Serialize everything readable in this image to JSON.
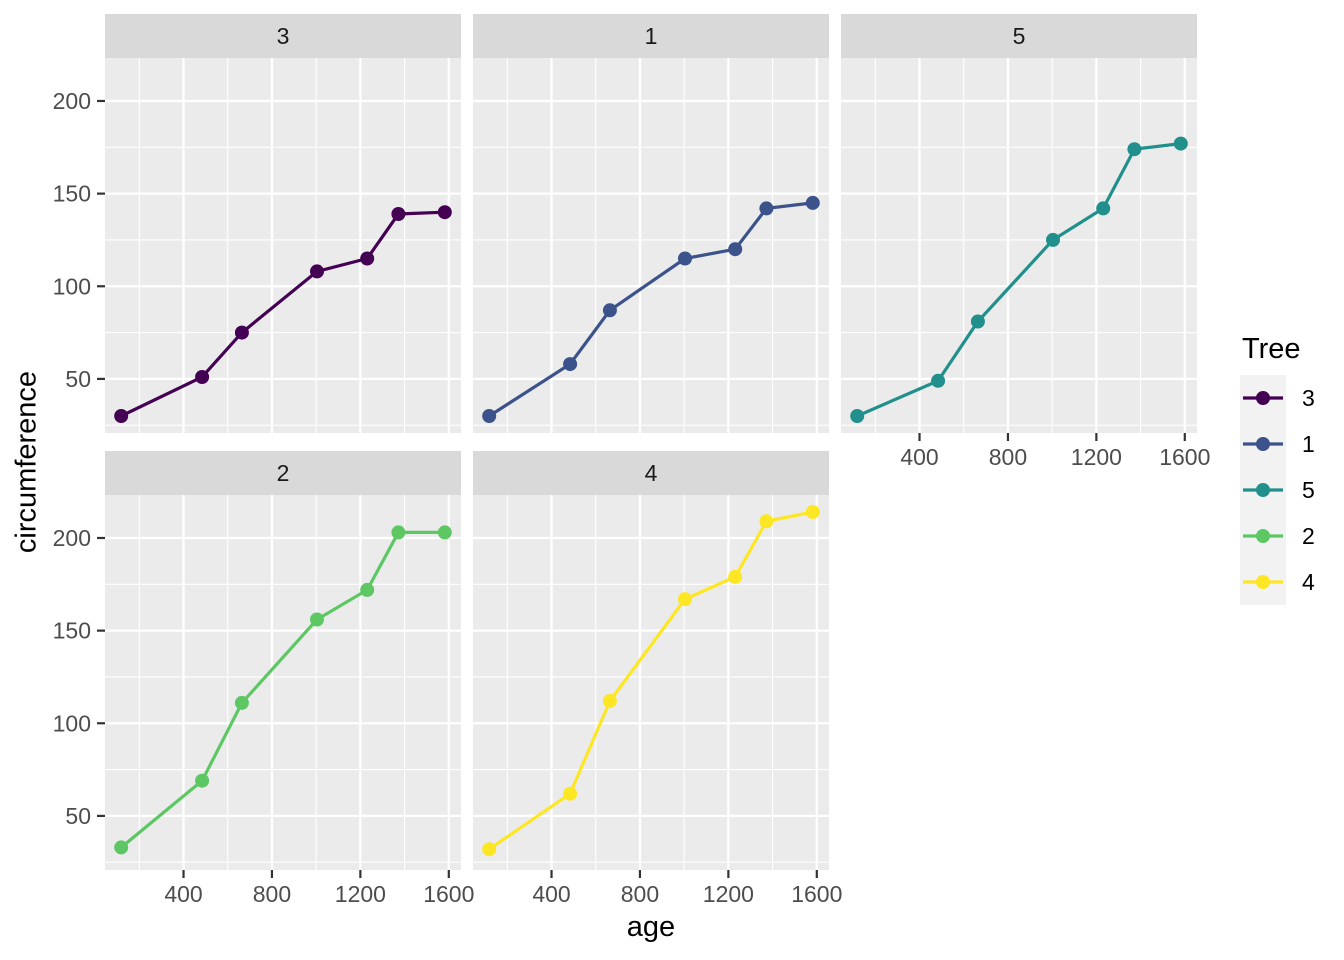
{
  "chart_data": {
    "type": "line",
    "title": "",
    "xlabel": "age",
    "ylabel": "circumference",
    "x": [
      118,
      484,
      664,
      1004,
      1231,
      1372,
      1582
    ],
    "facets": [
      {
        "label": "3",
        "row": 0,
        "col": 0,
        "color": "#440154",
        "values": [
          30,
          51,
          75,
          108,
          115,
          139,
          140
        ]
      },
      {
        "label": "1",
        "row": 0,
        "col": 1,
        "color": "#3B528B",
        "values": [
          30,
          58,
          87,
          115,
          120,
          142,
          145
        ]
      },
      {
        "label": "5",
        "row": 0,
        "col": 2,
        "color": "#21908C",
        "values": [
          30,
          49,
          81,
          125,
          142,
          174,
          177
        ]
      },
      {
        "label": "2",
        "row": 1,
        "col": 0,
        "color": "#5DC863",
        "values": [
          33,
          69,
          111,
          156,
          172,
          203,
          203
        ]
      },
      {
        "label": "4",
        "row": 1,
        "col": 1,
        "color": "#FDE725",
        "values": [
          32,
          62,
          112,
          167,
          179,
          209,
          214
        ]
      }
    ],
    "legend": {
      "title": "Tree",
      "entries": [
        {
          "label": "3",
          "color": "#440154"
        },
        {
          "label": "1",
          "color": "#3B528B"
        },
        {
          "label": "5",
          "color": "#21908C"
        },
        {
          "label": "2",
          "color": "#5DC863"
        },
        {
          "label": "4",
          "color": "#FDE725"
        }
      ],
      "position": "right"
    },
    "x_ticks": [
      400,
      800,
      1200,
      1600
    ],
    "x_minor": [
      200,
      600,
      1000,
      1400
    ],
    "y_ticks": [
      50,
      100,
      150,
      200
    ],
    "y_minor": [
      25,
      75,
      125,
      175
    ],
    "xlim": [
      44.8,
      1655.2
    ],
    "ylim": [
      20.8,
      223.2
    ],
    "grid": "on",
    "theme": {
      "panel_bg": "#EBEBEB",
      "strip_bg": "#D9D9D9",
      "grid_color": "#FFFFFF",
      "axis_text_color": "#4D4D4D",
      "strip_text_color": "#1A1A1A",
      "tick_color": "#333333",
      "background": "#FFFFFF"
    }
  }
}
